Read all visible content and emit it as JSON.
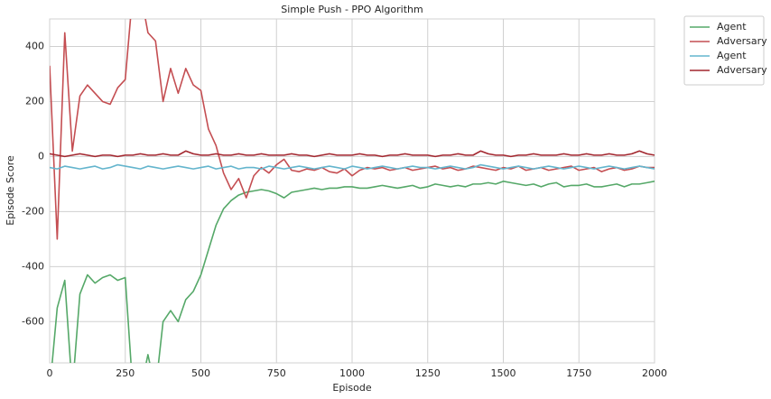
{
  "chart_data": {
    "type": "line",
    "title": "Simple Push - PPO Algorithm",
    "x_label": "Episode",
    "y_label": "Episode Score",
    "x": [
      0,
      25,
      50,
      75,
      100,
      125,
      150,
      175,
      200,
      225,
      250,
      275,
      300,
      325,
      350,
      375,
      400,
      425,
      450,
      475,
      500,
      525,
      550,
      575,
      600,
      625,
      650,
      675,
      700,
      725,
      750,
      775,
      800,
      825,
      850,
      875,
      900,
      925,
      950,
      975,
      1000,
      1025,
      1050,
      1075,
      1100,
      1125,
      1150,
      1175,
      1200,
      1225,
      1250,
      1275,
      1300,
      1325,
      1350,
      1375,
      1400,
      1425,
      1450,
      1475,
      1500,
      1525,
      1550,
      1575,
      1600,
      1625,
      1650,
      1675,
      1700,
      1725,
      1750,
      1775,
      1800,
      1825,
      1850,
      1875,
      1900,
      1925,
      1950,
      1975,
      2000
    ],
    "series": [
      {
        "name": "Agent",
        "color": "#55a868",
        "values": [
          -850,
          -550,
          -450,
          -850,
          -500,
          -430,
          -460,
          -440,
          -430,
          -450,
          -440,
          -850,
          -850,
          -720,
          -850,
          -600,
          -560,
          -600,
          -520,
          -490,
          -430,
          -340,
          -250,
          -190,
          -160,
          -140,
          -130,
          -125,
          -120,
          -125,
          -135,
          -150,
          -130,
          -125,
          -120,
          -115,
          -120,
          -115,
          -115,
          -110,
          -110,
          -115,
          -115,
          -110,
          -105,
          -110,
          -115,
          -110,
          -105,
          -115,
          -110,
          -100,
          -105,
          -110,
          -105,
          -110,
          -100,
          -100,
          -95,
          -100,
          -90,
          -95,
          -100,
          -105,
          -100,
          -110,
          -100,
          -95,
          -110,
          -105,
          -105,
          -100,
          -110,
          -110,
          -105,
          -100,
          -110,
          -100,
          -100,
          -95,
          -90
        ]
      },
      {
        "name": "Adversary",
        "color": "#c44e52",
        "values": [
          330,
          -300,
          450,
          20,
          220,
          260,
          230,
          200,
          190,
          250,
          280,
          600,
          600,
          450,
          420,
          200,
          320,
          230,
          320,
          260,
          240,
          100,
          40,
          -60,
          -120,
          -80,
          -150,
          -70,
          -40,
          -60,
          -30,
          -10,
          -50,
          -55,
          -45,
          -50,
          -40,
          -55,
          -60,
          -45,
          -70,
          -50,
          -40,
          -45,
          -40,
          -50,
          -45,
          -40,
          -50,
          -45,
          -40,
          -35,
          -45,
          -40,
          -50,
          -45,
          -35,
          -40,
          -45,
          -50,
          -40,
          -45,
          -35,
          -50,
          -45,
          -40,
          -50,
          -45,
          -40,
          -35,
          -50,
          -45,
          -40,
          -55,
          -45,
          -40,
          -50,
          -45,
          -35,
          -40,
          -40
        ]
      },
      {
        "name": "Agent",
        "color": "#64b5cd",
        "values": [
          -40,
          -45,
          -35,
          -40,
          -45,
          -40,
          -35,
          -45,
          -40,
          -30,
          -35,
          -40,
          -45,
          -35,
          -40,
          -45,
          -40,
          -35,
          -40,
          -45,
          -40,
          -35,
          -45,
          -40,
          -35,
          -45,
          -40,
          -40,
          -45,
          -35,
          -40,
          -45,
          -40,
          -35,
          -40,
          -45,
          -40,
          -35,
          -40,
          -45,
          -35,
          -40,
          -45,
          -40,
          -35,
          -40,
          -45,
          -40,
          -35,
          -40,
          -40,
          -45,
          -40,
          -35,
          -40,
          -45,
          -40,
          -30,
          -35,
          -40,
          -45,
          -40,
          -35,
          -40,
          -45,
          -40,
          -35,
          -40,
          -45,
          -40,
          -35,
          -40,
          -45,
          -40,
          -35,
          -40,
          -45,
          -40,
          -35,
          -40,
          -45
        ]
      },
      {
        "name": "Adversary",
        "color": "#a2262e",
        "values": [
          10,
          5,
          0,
          5,
          10,
          5,
          0,
          5,
          5,
          0,
          5,
          5,
          10,
          5,
          5,
          10,
          5,
          5,
          20,
          10,
          5,
          5,
          10,
          5,
          5,
          10,
          5,
          5,
          10,
          5,
          5,
          5,
          10,
          5,
          5,
          0,
          5,
          10,
          5,
          5,
          5,
          10,
          5,
          5,
          0,
          5,
          5,
          10,
          5,
          5,
          5,
          0,
          5,
          5,
          10,
          5,
          5,
          20,
          10,
          5,
          5,
          0,
          5,
          5,
          10,
          5,
          5,
          5,
          10,
          5,
          5,
          10,
          5,
          5,
          10,
          5,
          5,
          10,
          20,
          10,
          5
        ]
      }
    ],
    "xlim": [
      0,
      2000
    ],
    "xticks": [
      0,
      250,
      500,
      750,
      1000,
      1250,
      1500,
      1750,
      2000
    ],
    "ylim": [
      -750,
      500
    ],
    "yticks": [
      -600,
      -400,
      -200,
      0,
      200,
      400
    ],
    "grid": true,
    "legend": "outside-upper-right"
  }
}
